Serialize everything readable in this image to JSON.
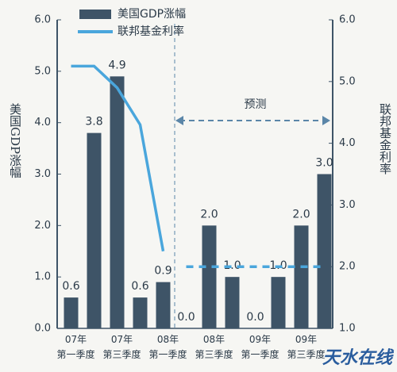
{
  "chart_data": {
    "type": "bar",
    "categories": [
      "07年\n第一季度",
      null,
      "07年\n第三季度",
      null,
      "08年\n第一季度",
      null,
      "08年\n第三季度",
      null,
      "09年\n第一季度",
      null,
      "09年\n第三季度",
      null
    ],
    "series": [
      {
        "name": "美国GDP涨幅",
        "type": "bar",
        "color": "#3e5467",
        "values": [
          0.6,
          3.8,
          4.9,
          0.6,
          0.9,
          0,
          2,
          1,
          0,
          1,
          2,
          3
        ],
        "value_labels": [
          "0.6",
          "3.8",
          "4.9",
          "0.6",
          "0.9",
          "0.0",
          "2.0",
          "1.0",
          "0.0",
          "1.0",
          "2.0",
          "3.0"
        ]
      },
      {
        "name": "联邦基金利率",
        "type": "line",
        "color": "#4aa6dc",
        "axis": "y2",
        "values": [
          5.25,
          5.25,
          4.9,
          4.3,
          2.25,
          2.0,
          2.0,
          2.0,
          2.0,
          2.0,
          2.0,
          2.0
        ],
        "forecast_from": 5
      }
    ],
    "ylabel": "美国GDP涨幅",
    "y2label": "联邦基金利率",
    "ylim": [
      0,
      6
    ],
    "yticks": [
      {
        "value": 0,
        "label": "0.0"
      },
      {
        "value": 1,
        "label": "1.0"
      },
      {
        "value": 2,
        "label": "2.0"
      },
      {
        "value": 3,
        "label": "3.0"
      },
      {
        "value": 4,
        "label": "4.0"
      },
      {
        "value": 5,
        "label": "5.0"
      },
      {
        "value": 6,
        "label": "6.0"
      }
    ],
    "y2lim": [
      1,
      6
    ],
    "y2ticks": [
      {
        "value": 1,
        "label": "1.0"
      },
      {
        "value": 2,
        "label": "2.0"
      },
      {
        "value": 3,
        "label": "3.0"
      },
      {
        "value": 4,
        "label": "4.0"
      },
      {
        "value": 5,
        "label": "5.0"
      },
      {
        "value": 6,
        "label": "6.0"
      }
    ],
    "annotation": "预测",
    "watermark": "天水在线",
    "grid": false,
    "legend": "top"
  }
}
